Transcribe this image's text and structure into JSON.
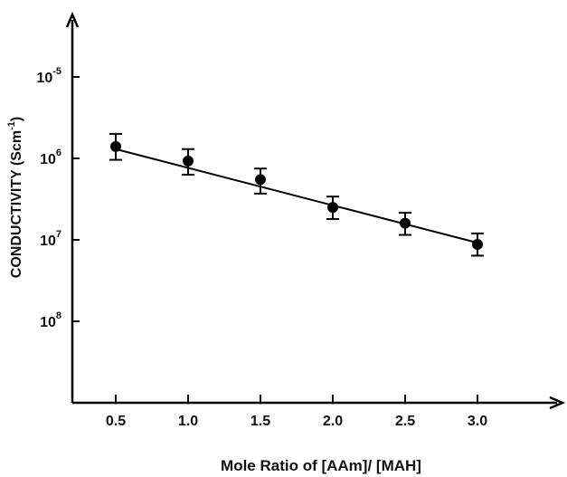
{
  "chart_data": {
    "type": "scatter",
    "title": "",
    "xlabel": "Mole  Ratio of [AAm]/ [MAH]",
    "ylabel_main": "CONDUCTIVITY (Scm",
    "ylabel_exp": "-1",
    "ylabel_close": ")",
    "xlim": [
      0.2,
      3.55
    ],
    "ylim_log10": [
      -9.0,
      -4.3
    ],
    "y_scale": "log",
    "grid": false,
    "x_ticks": [
      {
        "value": 0.5,
        "label": "0.5"
      },
      {
        "value": 1.0,
        "label": "1.0"
      },
      {
        "value": 1.5,
        "label": "1.5"
      },
      {
        "value": 2.0,
        "label": "2.0"
      },
      {
        "value": 2.5,
        "label": "2.5"
      },
      {
        "value": 3.0,
        "label": "3.0"
      }
    ],
    "y_ticks": [
      {
        "log10": -5,
        "base": "10",
        "exp": "-5"
      },
      {
        "log10": -6,
        "base": "10",
        "exp": "6"
      },
      {
        "log10": -7,
        "base": "10",
        "exp": "7"
      },
      {
        "log10": -8,
        "base": "10",
        "exp": "8"
      }
    ],
    "series": [
      {
        "x": [
          0.5,
          1.0,
          1.5,
          2.0,
          2.5,
          3.0
        ],
        "y": [
          1.4e-06,
          9.3e-07,
          5.5e-07,
          2.5e-07,
          1.6e-07,
          8.8e-08
        ],
        "y_err_low": [
          9.6e-07,
          6.3e-07,
          3.7e-07,
          1.8e-07,
          1.15e-07,
          6.4e-08
        ],
        "y_err_high": [
          2e-06,
          1.3e-06,
          7.5e-07,
          3.4e-07,
          2.15e-07,
          1.2e-07
        ]
      }
    ],
    "fit_line": {
      "x": [
        0.5,
        3.0
      ],
      "y": [
        1.3e-06,
        9.2e-08
      ]
    }
  }
}
